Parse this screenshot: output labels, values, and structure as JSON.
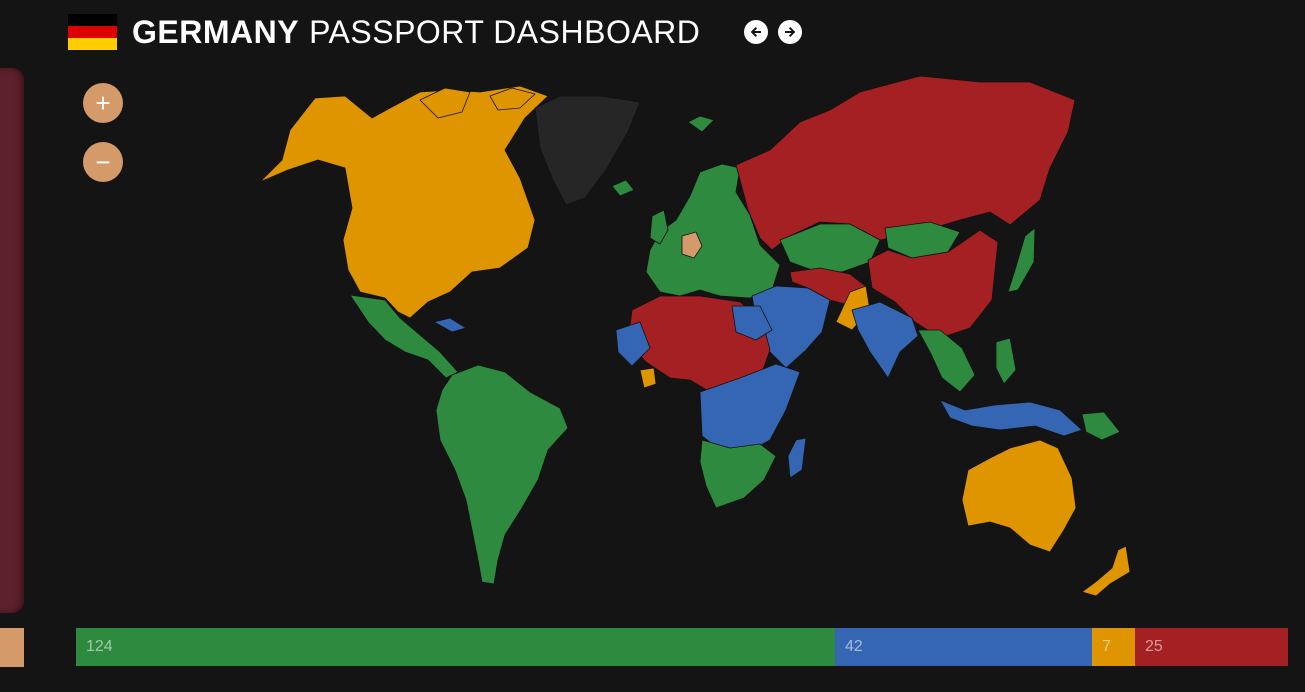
{
  "header": {
    "country": "GERMANY",
    "subtitle": "PASSPORT DASHBOARD",
    "prev_icon": "arrow-left-icon",
    "next_icon": "arrow-right-icon"
  },
  "zoom": {
    "in_label": "+",
    "out_label": "−"
  },
  "legend_colors": {
    "visa_free": "#2d8a3e",
    "visa_on_arrival": "#3566b3",
    "eta": "#de9500",
    "visa_required": "#a52022",
    "home_country": "#d49a6a",
    "no_data": "#262626"
  },
  "flag_colors": [
    "#000000",
    "#dd0000",
    "#ffce00"
  ],
  "stats": [
    {
      "key": "visa_free",
      "value": "124",
      "color": "#2d8a3e"
    },
    {
      "key": "visa_on_arrival",
      "value": "42",
      "color": "#3566b3"
    },
    {
      "key": "eta",
      "value": "7",
      "color": "#de9500"
    },
    {
      "key": "visa_required",
      "value": "25",
      "color": "#a52022"
    }
  ]
}
